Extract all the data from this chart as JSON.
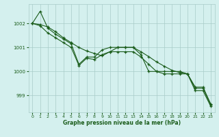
{
  "x": [
    0,
    1,
    2,
    3,
    4,
    5,
    6,
    7,
    8,
    9,
    10,
    11,
    12,
    13,
    14,
    15,
    16,
    17,
    18,
    19,
    20,
    21,
    22,
    23
  ],
  "series1": [
    1002.0,
    1002.5,
    1001.8,
    1001.55,
    1001.35,
    1001.15,
    1000.3,
    1000.6,
    1000.6,
    1000.9,
    1001.0,
    1001.0,
    1001.0,
    1001.0,
    1000.7,
    1000.0,
    1000.0,
    1000.0,
    1000.0,
    1000.0,
    999.9,
    999.3,
    999.3,
    998.6
  ],
  "series2": [
    1002.0,
    1001.95,
    1001.85,
    1001.65,
    1001.4,
    1001.2,
    1001.0,
    1000.85,
    1000.75,
    1000.65,
    1000.82,
    1001.0,
    1001.0,
    1001.0,
    1000.82,
    1000.62,
    1000.4,
    1000.22,
    1000.05,
    999.95,
    999.9,
    999.35,
    999.35,
    998.65
  ],
  "series3": [
    1002.0,
    1001.9,
    1001.6,
    1001.4,
    1001.2,
    1001.0,
    1000.25,
    1000.55,
    1000.5,
    1000.7,
    1000.82,
    1000.82,
    1000.82,
    1000.82,
    1000.6,
    1000.3,
    1000.0,
    999.9,
    999.9,
    999.9,
    999.9,
    999.2,
    999.2,
    998.55
  ],
  "line_color": "#1a5c1a",
  "bg_color": "#d4f0ee",
  "grid_color": "#a8ccc8",
  "xlabel": "Graphe pression niveau de la mer (hPa)",
  "ylim": [
    998.3,
    1002.8
  ],
  "yticks": [
    999,
    1000,
    1001,
    1002
  ],
  "xticks": [
    0,
    1,
    2,
    3,
    4,
    5,
    6,
    7,
    8,
    9,
    10,
    11,
    12,
    13,
    14,
    15,
    16,
    17,
    18,
    19,
    20,
    21,
    22,
    23
  ]
}
